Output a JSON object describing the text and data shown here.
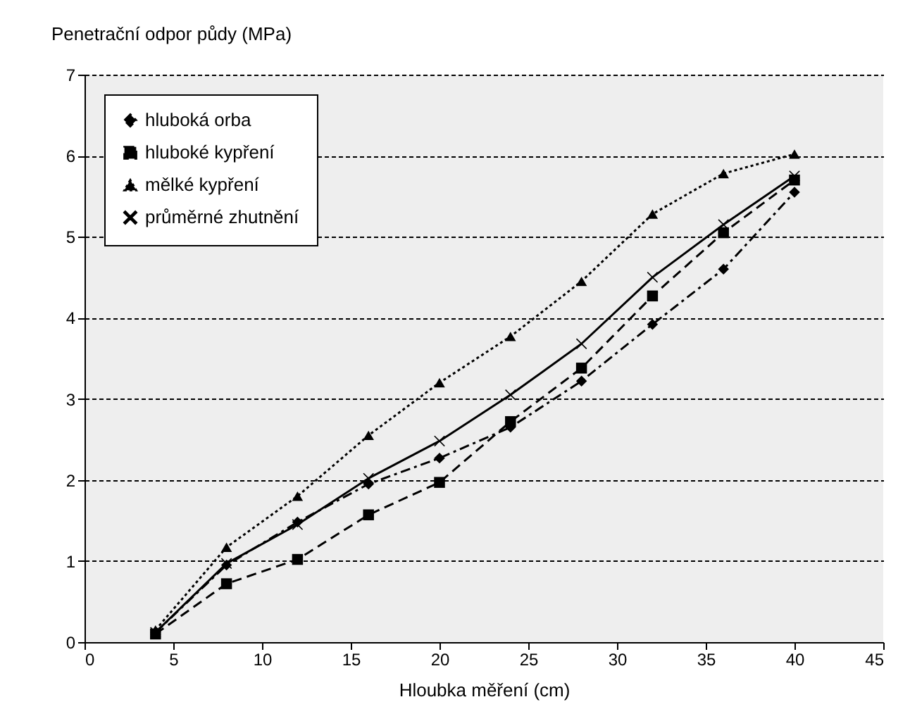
{
  "chart_data": {
    "type": "line",
    "xlabel": "Hloubka měření (cm)",
    "ylabel": "Penetrační odpor půdy (MPa)",
    "x": [
      4,
      8,
      12,
      16,
      20,
      24,
      28,
      32,
      36,
      40
    ],
    "series": [
      {
        "name": "hluboká orba",
        "color": "#000000",
        "marker": "diamond",
        "line_style": "dashdot",
        "values": [
          0.12,
          0.95,
          1.48,
          1.95,
          2.27,
          2.65,
          3.22,
          3.92,
          4.6,
          5.55
        ]
      },
      {
        "name": "hluboké kypření",
        "color": "#000000",
        "marker": "square",
        "line_style": "dashed",
        "values": [
          0.1,
          0.72,
          1.02,
          1.57,
          1.97,
          2.72,
          3.38,
          4.27,
          5.05,
          5.7
        ]
      },
      {
        "name": "mělké kypření",
        "color": "#000000",
        "marker": "triangle",
        "line_style": "dotted",
        "values": [
          0.15,
          1.17,
          1.8,
          2.55,
          3.2,
          3.77,
          4.45,
          5.28,
          5.78,
          6.02
        ]
      },
      {
        "name": "průměrné zhutnění",
        "color": "#000000",
        "marker": "cross",
        "line_style": "solid",
        "values": [
          0.12,
          0.97,
          1.45,
          2.02,
          2.48,
          3.05,
          3.68,
          4.5,
          5.15,
          5.75
        ]
      }
    ],
    "xlim": [
      0,
      45
    ],
    "xticks": [
      0,
      5,
      10,
      15,
      20,
      25,
      30,
      35,
      40,
      45
    ],
    "ylim": [
      0,
      7
    ],
    "yticks": [
      0,
      1,
      2,
      3,
      4,
      5,
      6,
      7
    ],
    "grid": "y",
    "legend": "top left"
  }
}
